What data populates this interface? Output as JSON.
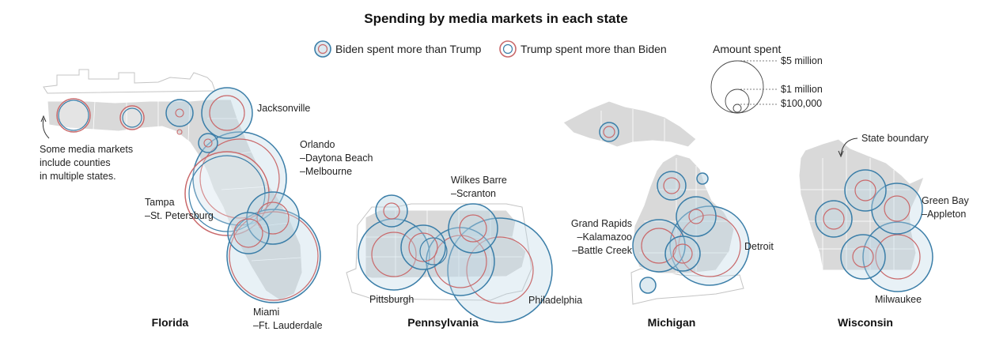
{
  "title": "Spending by media markets in each state",
  "legend": {
    "biden": "Biden spent more than Trump",
    "trump": "Trump spent more than Biden",
    "size_title": "Amount spent",
    "sizes": [
      "$5 million",
      "$1 million",
      "$100,000"
    ]
  },
  "colors": {
    "biden_stroke": "#3b7ea8",
    "biden_fill": "#bcd6e4",
    "trump_stroke": "#c9696b",
    "land": "#d9d9d9"
  },
  "states": {
    "florida": {
      "name": "Florida",
      "markets": {
        "jacksonville": "Jacksonville",
        "orlando": [
          "Orlando",
          "–Daytona Beach",
          "–Melbourne"
        ],
        "tampa": [
          "Tampa",
          "–St. Petersburg"
        ],
        "miami": [
          "Miami",
          "–Ft. Lauderdale"
        ]
      },
      "note": [
        "Some media markets",
        "include counties",
        "in multiple states."
      ]
    },
    "pennsylvania": {
      "name": "Pennsylvania",
      "markets": {
        "wilkes": [
          "Wilkes Barre",
          "–Scranton"
        ],
        "pittsburgh": "Pittsburgh",
        "philadelphia": "Philadelphia"
      }
    },
    "michigan": {
      "name": "Michigan",
      "markets": {
        "grand_rapids": [
          "Grand Rapids",
          "–Kalamazoo",
          "–Battle Creek"
        ],
        "detroit": "Detroit"
      }
    },
    "wisconsin": {
      "name": "Wisconsin",
      "markets": {
        "green_bay": [
          "Green Bay",
          "–Appleton"
        ],
        "milwaukee": "Milwaukee"
      },
      "note": "State boundary"
    }
  }
}
